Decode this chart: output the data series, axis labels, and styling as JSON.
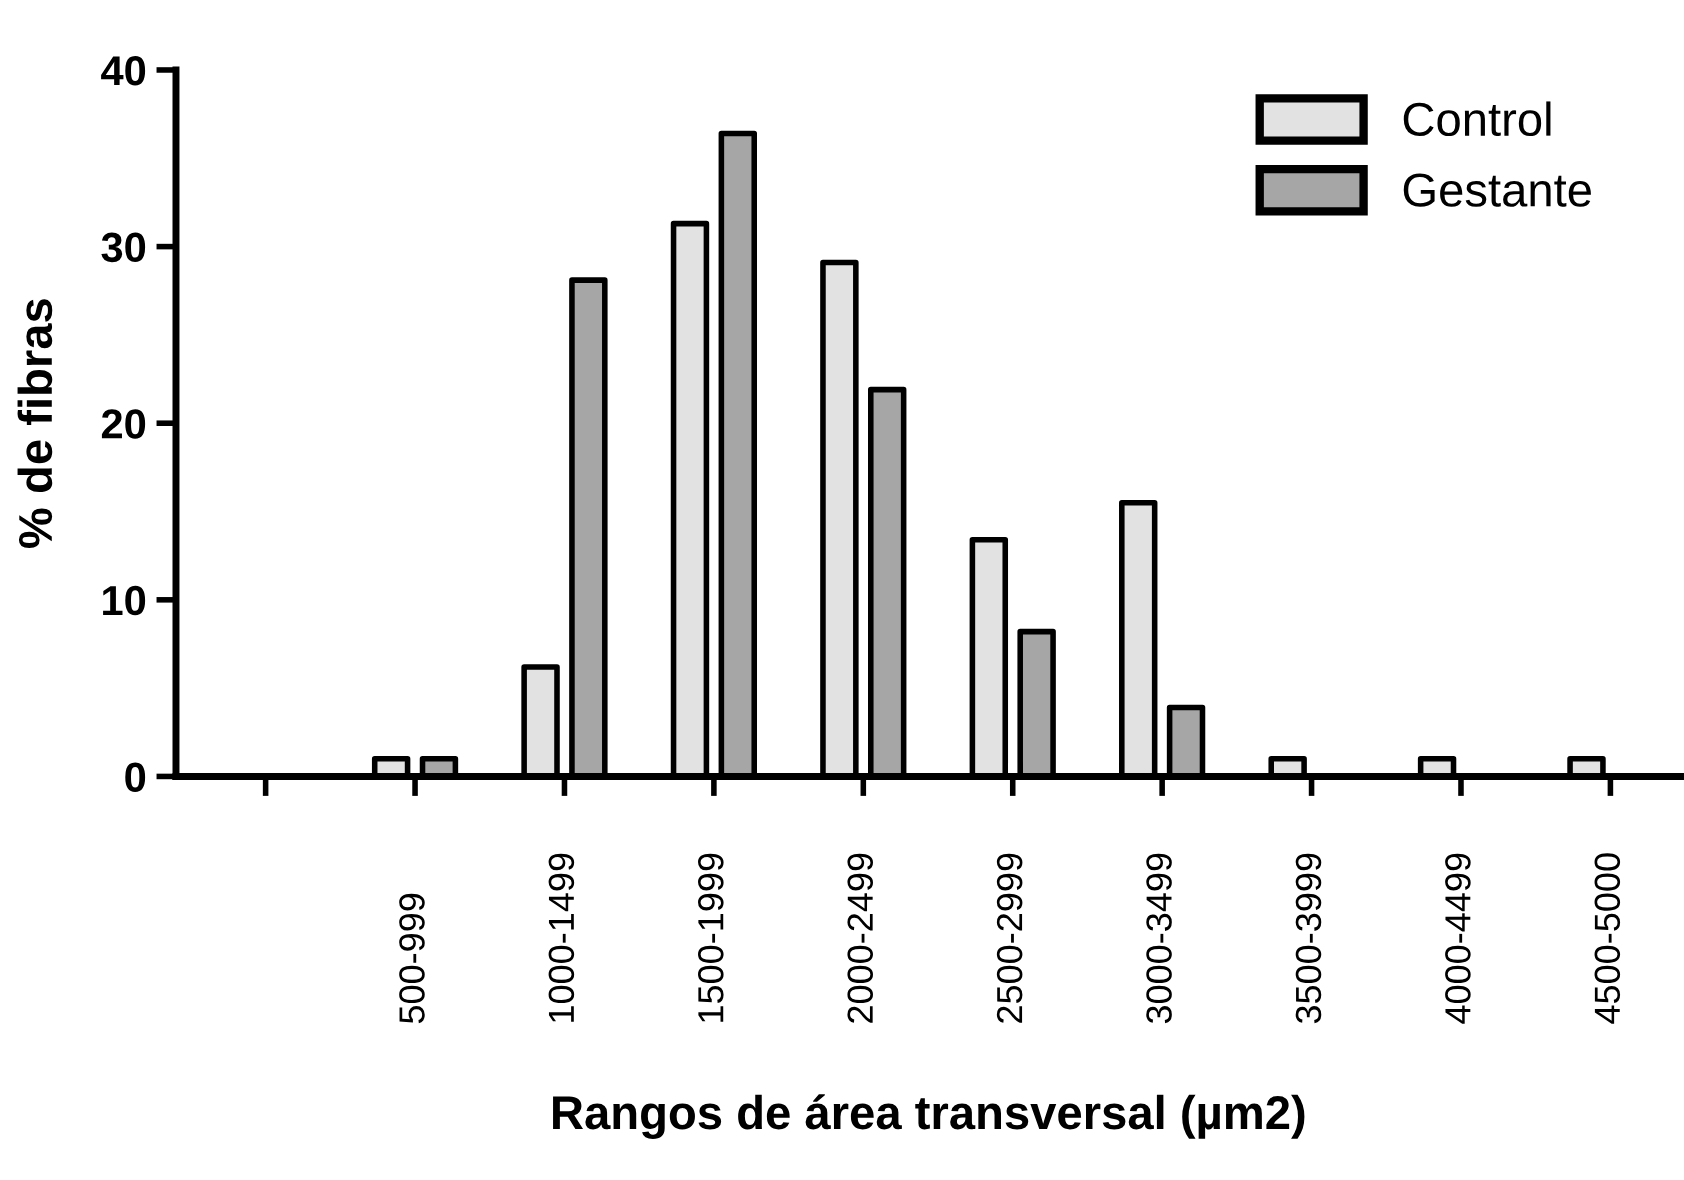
{
  "chart_data": {
    "type": "bar",
    "xlabel": "Rangos de área transversal (µm2)",
    "ylabel": "% de fibras",
    "categories": [
      null,
      "500-999",
      "1000-1499",
      "1500-1999",
      "2000-2499",
      "2500-2999",
      "3000-3499",
      "3500-3999",
      "4000-4499",
      "4500-5000"
    ],
    "series": [
      {
        "name": "Control",
        "color": "#e2e2e2",
        "values": [
          null,
          1.0,
          6.2,
          31.3,
          29.1,
          13.4,
          15.5,
          1.0,
          1.0,
          1.0
        ]
      },
      {
        "name": "Gestante",
        "color": "#a6a6a6",
        "values": [
          null,
          1.0,
          28.1,
          36.4,
          21.9,
          8.2,
          3.9,
          null,
          null,
          null
        ]
      }
    ],
    "ylim": [
      0,
      40
    ],
    "yticks": [
      0,
      10,
      20,
      30,
      40
    ],
    "grid": false,
    "legend": "top right"
  }
}
